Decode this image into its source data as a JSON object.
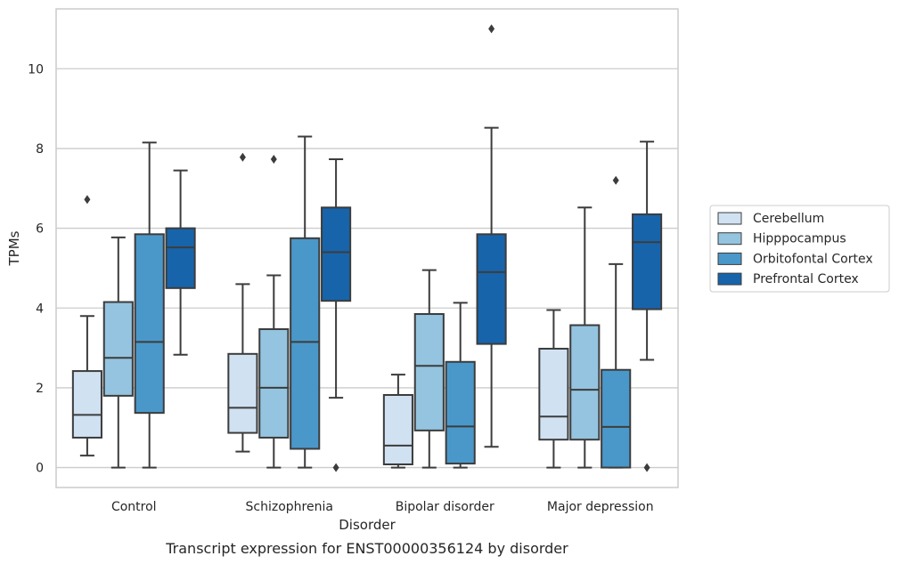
{
  "chart_data": {
    "type": "box",
    "title": "Transcript expression for ENST00000356124 by disorder",
    "xlabel": "Disorder",
    "ylabel": "TPMs",
    "ylim": [
      -0.5,
      11.5
    ],
    "yticks": [
      0,
      2,
      4,
      6,
      8,
      10
    ],
    "grid": "horizontal",
    "legend_position": "right",
    "categories": [
      "Control",
      "Schizophrenia",
      "Bipolar disorder",
      "Major depression"
    ],
    "series": [
      {
        "name": "Cerebellum",
        "color": "#d0e1f2",
        "boxes": [
          {
            "whisker_low": 0.3,
            "q1": 0.75,
            "median": 1.32,
            "q3": 2.42,
            "whisker_high": 3.8,
            "outliers": [
              6.72
            ]
          },
          {
            "whisker_low": 0.4,
            "q1": 0.87,
            "median": 1.5,
            "q3": 2.85,
            "whisker_high": 4.6,
            "outliers": [
              7.78
            ]
          },
          {
            "whisker_low": 0.0,
            "q1": 0.08,
            "median": 0.55,
            "q3": 1.82,
            "whisker_high": 2.33,
            "outliers": []
          },
          {
            "whisker_low": 0.0,
            "q1": 0.7,
            "median": 1.28,
            "q3": 2.98,
            "whisker_high": 3.95,
            "outliers": []
          }
        ]
      },
      {
        "name": "Hipppocampus",
        "color": "#94c4df",
        "boxes": [
          {
            "whisker_low": 0.0,
            "q1": 1.8,
            "median": 2.75,
            "q3": 4.15,
            "whisker_high": 5.77,
            "outliers": []
          },
          {
            "whisker_low": 0.0,
            "q1": 0.75,
            "median": 2.0,
            "q3": 3.47,
            "whisker_high": 4.82,
            "outliers": [
              7.73
            ]
          },
          {
            "whisker_low": 0.0,
            "q1": 0.93,
            "median": 2.55,
            "q3": 3.85,
            "whisker_high": 4.95,
            "outliers": []
          },
          {
            "whisker_low": 0.0,
            "q1": 0.7,
            "median": 1.95,
            "q3": 3.57,
            "whisker_high": 6.52,
            "outliers": []
          }
        ]
      },
      {
        "name": "Orbitofontal Cortex",
        "color": "#4a98c9",
        "boxes": [
          {
            "whisker_low": 0.0,
            "q1": 1.37,
            "median": 3.15,
            "q3": 5.85,
            "whisker_high": 8.15,
            "outliers": []
          },
          {
            "whisker_low": 0.0,
            "q1": 0.47,
            "median": 3.15,
            "q3": 5.75,
            "whisker_high": 8.3,
            "outliers": []
          },
          {
            "whisker_low": 0.0,
            "q1": 0.1,
            "median": 1.03,
            "q3": 2.65,
            "whisker_high": 4.13,
            "outliers": []
          },
          {
            "whisker_low": 0.0,
            "q1": 0.0,
            "median": 1.02,
            "q3": 2.45,
            "whisker_high": 5.1,
            "outliers": [
              7.2
            ]
          }
        ]
      },
      {
        "name": "Prefrontal Cortex",
        "color": "#1764ab",
        "boxes": [
          {
            "whisker_low": 2.83,
            "q1": 4.5,
            "median": 5.52,
            "q3": 6.0,
            "whisker_high": 7.45,
            "outliers": []
          },
          {
            "whisker_low": 1.75,
            "q1": 4.18,
            "median": 5.4,
            "q3": 6.52,
            "whisker_high": 7.73,
            "outliers": [
              0.0
            ]
          },
          {
            "whisker_low": 0.52,
            "q1": 3.1,
            "median": 4.9,
            "q3": 5.85,
            "whisker_high": 8.52,
            "outliers": [
              11.0
            ]
          },
          {
            "whisker_low": 2.7,
            "q1": 3.97,
            "median": 5.65,
            "q3": 6.35,
            "whisker_high": 8.17,
            "outliers": [
              0.0
            ]
          }
        ]
      }
    ]
  }
}
